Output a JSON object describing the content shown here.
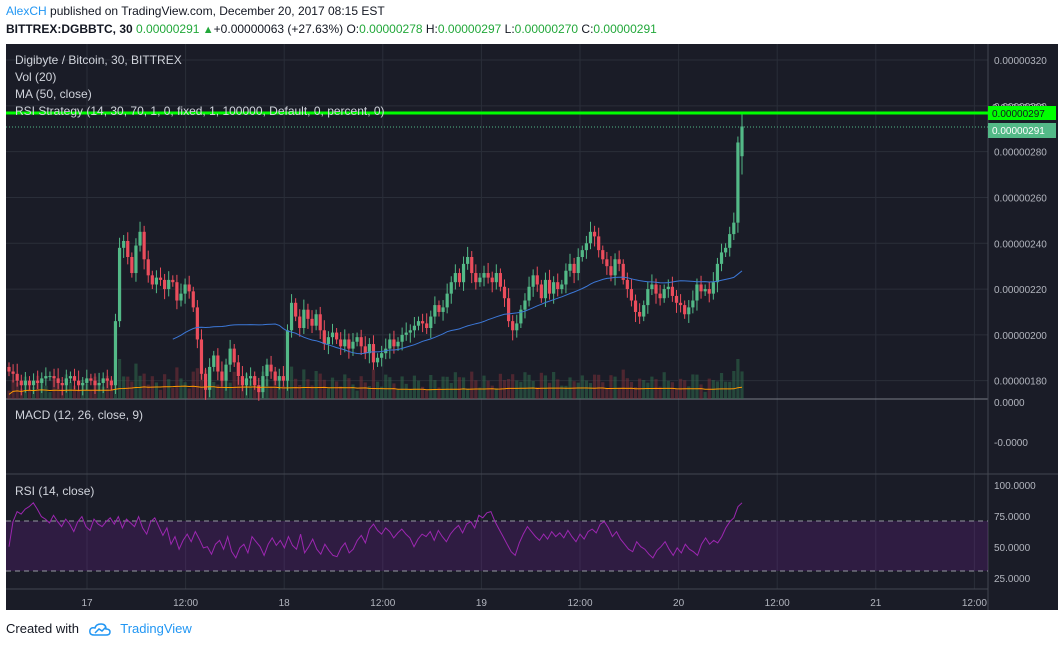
{
  "header": {
    "author": "AlexCH",
    "published_text": " published on TradingView.com, December 20, 2017 08:15 EST"
  },
  "ohlc_line": {
    "symbol": "BITTREX:DGBBTC, 30",
    "price": "0.00000291",
    "arrow": "▲",
    "change": "+0.00000063 (+27.63%)",
    "o_label": "O:",
    "o_value": "0.00000278",
    "h_label": "H:",
    "h_value": "0.00000297",
    "l_label": "L:",
    "l_value": "0.00000270",
    "c_label": "C:",
    "c_value": "0.00000291"
  },
  "legend": {
    "title": "Digibyte / Bitcoin, 30, BITTREX",
    "vol": "Vol (20)",
    "ma": "MA (50, close)",
    "strategy": "RSI Strategy (14, 30, 70, 1, 0, fixed, 1, 100000, Default, 0, percent, 0)"
  },
  "macd_pane": {
    "label": "MACD (12, 26, close, 9)",
    "ticks": [
      "0.0000",
      "-0.0000"
    ]
  },
  "rsi_pane": {
    "label": "RSI (14, close)",
    "ticks": [
      "100.0000",
      "75.0000",
      "50.0000",
      "25.0000"
    ]
  },
  "price_badges": {
    "high": "0.00000297",
    "last": "0.00000291",
    "hidden": "0.00000300"
  },
  "colors": {
    "background": "#1a1c27",
    "bull": "#53b987",
    "bear": "#eb4d5c",
    "ma": "#3c78d8",
    "rsi": "#9c27b0",
    "strategy_line": "#00ff00",
    "vol_ma": "#ff9800"
  },
  "footer": {
    "created_with": "Created with",
    "brand": "TradingView"
  },
  "chart_data": [
    {
      "type": "candlestick",
      "title": "Digibyte / Bitcoin, 30, BITTREX",
      "x_ticks": [
        "17",
        "12:00",
        "18",
        "12:00",
        "19",
        "12:00",
        "20",
        "12:00",
        "21",
        "12:00"
      ],
      "y_ticks": [
        "0.00000320",
        "0.00000300",
        "0.00000280",
        "0.00000260",
        "0.00000240",
        "0.00000220",
        "0.00000200",
        "0.00000180"
      ],
      "ylim": [
        1.72e-06,
        3.27e-06
      ],
      "grid": true,
      "closes": [
        1.84,
        1.83,
        1.8,
        1.78,
        1.8,
        1.78,
        1.8,
        1.79,
        1.81,
        1.82,
        1.82,
        1.81,
        1.79,
        1.78,
        1.81,
        1.82,
        1.8,
        1.78,
        1.79,
        1.81,
        1.8,
        1.78,
        1.79,
        1.81,
        1.8,
        1.78,
        2.06,
        2.38,
        2.41,
        2.34,
        2.27,
        2.39,
        2.45,
        2.33,
        2.26,
        2.22,
        2.25,
        2.24,
        2.2,
        2.24,
        2.23,
        2.15,
        2.18,
        2.22,
        2.19,
        2.12,
        1.98,
        1.83,
        1.76,
        1.86,
        1.91,
        1.84,
        1.8,
        1.87,
        1.94,
        1.88,
        1.82,
        1.78,
        1.81,
        1.82,
        1.78,
        1.75,
        1.82,
        1.87,
        1.84,
        1.8,
        1.82,
        1.8,
        2.02,
        2.14,
        2.08,
        2.03,
        2.11,
        2.07,
        2.04,
        2.09,
        2.02,
        1.96,
        1.99,
        2.01,
        1.98,
        1.95,
        1.98,
        1.94,
        1.97,
        1.99,
        1.95,
        1.92,
        1.96,
        1.88,
        1.9,
        1.92,
        1.94,
        1.98,
        1.95,
        1.97,
        2.0,
        2.01,
        2.02,
        2.04,
        2.06,
        2.05,
        2.03,
        2.08,
        2.13,
        2.1,
        2.12,
        2.18,
        2.23,
        2.27,
        2.23,
        2.31,
        2.34,
        2.27,
        2.23,
        2.25,
        2.27,
        2.25,
        2.23,
        2.27,
        2.21,
        2.16,
        2.06,
        2.02,
        2.05,
        2.11,
        2.15,
        2.21,
        2.26,
        2.22,
        2.16,
        2.24,
        2.18,
        2.23,
        2.2,
        2.22,
        2.28,
        2.31,
        2.27,
        2.34,
        2.37,
        2.4,
        2.45,
        2.43,
        2.37,
        2.33,
        2.3,
        2.26,
        2.33,
        2.31,
        2.24,
        2.2,
        2.15,
        2.1,
        2.08,
        2.13,
        2.2,
        2.22,
        2.18,
        2.16,
        2.2,
        2.21,
        2.17,
        2.14,
        2.13,
        2.09,
        2.12,
        2.15,
        2.22,
        2.19,
        2.2,
        2.18,
        2.23,
        2.31,
        2.36,
        2.38,
        2.44,
        2.49,
        2.84,
        2.91
      ],
      "open_first": 1.86,
      "last_candle": {
        "open": 2.78,
        "high": 2.97,
        "low": 2.7,
        "close": 2.91
      },
      "price_unit": "1e-6 BTC"
    },
    {
      "type": "line",
      "title": "RSI (14, close)",
      "ylim": [
        0,
        100
      ],
      "bands": [
        30,
        70
      ],
      "values": [
        50,
        70,
        78,
        76,
        80,
        82,
        85,
        80,
        74,
        72,
        69,
        75,
        70,
        66,
        72,
        68,
        62,
        70,
        74,
        66,
        63,
        72,
        68,
        66,
        70,
        73,
        68,
        74,
        65,
        72,
        69,
        66,
        74,
        65,
        60,
        70,
        73,
        66,
        59,
        65,
        52,
        58,
        48,
        55,
        60,
        54,
        62,
        56,
        49,
        50,
        44,
        52,
        55,
        48,
        58,
        46,
        41,
        49,
        52,
        45,
        58,
        54,
        50,
        43,
        52,
        57,
        51,
        55,
        49,
        58,
        51,
        48,
        60,
        45,
        50,
        56,
        48,
        44,
        52,
        47,
        43,
        42,
        49,
        53,
        45,
        48,
        55,
        59,
        53,
        64,
        68,
        63,
        60,
        65,
        62,
        57,
        61,
        64,
        60,
        57,
        50,
        56,
        60,
        58,
        62,
        55,
        63,
        58,
        54,
        60,
        64,
        67,
        61,
        68,
        70,
        65,
        75,
        73,
        77,
        78,
        70,
        64,
        58,
        52,
        46,
        43,
        53,
        60,
        66,
        62,
        58,
        55,
        60,
        56,
        62,
        58,
        61,
        57,
        63,
        58,
        54,
        60,
        56,
        62,
        64,
        61,
        68,
        70,
        65,
        58,
        62,
        56,
        52,
        48,
        46,
        54,
        50,
        48,
        44,
        41,
        47,
        50,
        54,
        48,
        43,
        49,
        45,
        52,
        48,
        46,
        43,
        52,
        57,
        52,
        55,
        53,
        58,
        65,
        70,
        73,
        82,
        85
      ]
    }
  ]
}
